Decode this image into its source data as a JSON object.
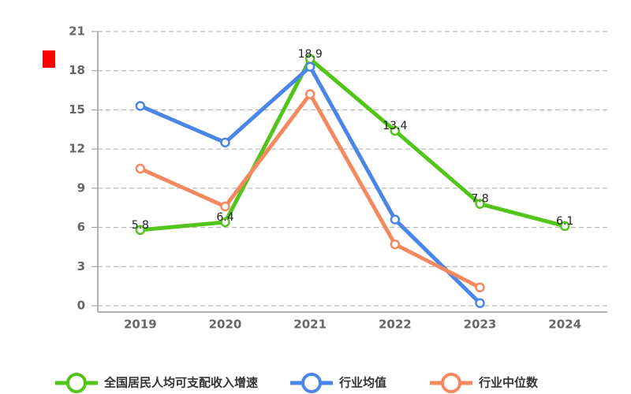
{
  "chart_data": {
    "type": "line",
    "categories": [
      "2019",
      "2020",
      "2021",
      "2022",
      "2023",
      "2024"
    ],
    "series": [
      {
        "name": "全国居民人均可支配收入增速",
        "color": "#52c41a",
        "values": [
          5.8,
          6.4,
          18.9,
          13.4,
          7.8,
          6.1
        ],
        "data_labels": true
      },
      {
        "name": "行业均值",
        "color": "#4a86e8",
        "values": [
          15.3,
          12.5,
          18.3,
          6.6,
          0.2,
          null
        ]
      },
      {
        "name": "行业中位数",
        "color": "#f4895f",
        "values": [
          10.5,
          7.6,
          16.2,
          4.7,
          1.4,
          null
        ]
      }
    ],
    "ylim": [
      0,
      21
    ],
    "yticks": [
      0,
      3,
      6,
      9,
      12,
      15,
      18,
      21
    ],
    "grid": true,
    "legend": "bottom"
  }
}
